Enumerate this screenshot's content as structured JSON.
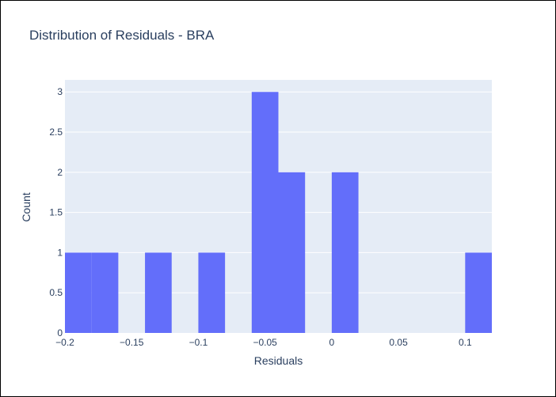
{
  "chart_data": {
    "type": "bar",
    "title": "Distribution of Residuals - BRA",
    "xlabel": "Residuals",
    "ylabel": "Count",
    "xlim": [
      -0.2,
      0.12
    ],
    "ylim": [
      0,
      3.15
    ],
    "xticks": [
      -0.2,
      -0.15,
      -0.1,
      -0.05,
      0,
      0.05,
      0.1
    ],
    "xtick_labels": [
      "−0.2",
      "−0.15",
      "−0.1",
      "−0.05",
      "0",
      "0.05",
      "0.1"
    ],
    "yticks": [
      0,
      0.5,
      1,
      1.5,
      2,
      2.5,
      3
    ],
    "ytick_labels": [
      "0",
      "0.5",
      "1",
      "1.5",
      "2",
      "2.5",
      "3"
    ],
    "bin_width": 0.02,
    "bins": [
      {
        "x0": -0.2,
        "x1": -0.18,
        "count": 1
      },
      {
        "x0": -0.18,
        "x1": -0.16,
        "count": 1
      },
      {
        "x0": -0.16,
        "x1": -0.14,
        "count": 0
      },
      {
        "x0": -0.14,
        "x1": -0.12,
        "count": 1
      },
      {
        "x0": -0.12,
        "x1": -0.1,
        "count": 0
      },
      {
        "x0": -0.1,
        "x1": -0.08,
        "count": 1
      },
      {
        "x0": -0.08,
        "x1": -0.06,
        "count": 0
      },
      {
        "x0": -0.06,
        "x1": -0.04,
        "count": 3
      },
      {
        "x0": -0.04,
        "x1": -0.02,
        "count": 2
      },
      {
        "x0": -0.02,
        "x1": 0.0,
        "count": 0
      },
      {
        "x0": 0.0,
        "x1": 0.02,
        "count": 2
      },
      {
        "x0": 0.02,
        "x1": 0.04,
        "count": 0
      },
      {
        "x0": 0.04,
        "x1": 0.06,
        "count": 0
      },
      {
        "x0": 0.06,
        "x1": 0.08,
        "count": 0
      },
      {
        "x0": 0.08,
        "x1": 0.1,
        "count": 0
      },
      {
        "x0": 0.1,
        "x1": 0.12,
        "count": 1
      }
    ],
    "grid": true,
    "colors": {
      "bar": "#636efa",
      "plot_background": "#e5ecf6",
      "grid": "#ffffff",
      "text": "#2a3f5f"
    }
  }
}
